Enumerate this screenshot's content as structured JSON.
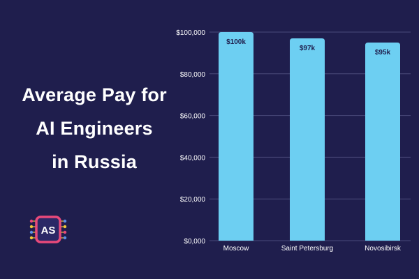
{
  "title": {
    "lines": [
      "Average Pay for",
      "AI Engineers",
      "in Russia"
    ]
  },
  "logo": {
    "text": "AS",
    "colors": {
      "border": "#e8497a",
      "fill": "#2a2866",
      "dots_pink": "#e8497a",
      "dots_yellow": "#f0c93a",
      "dots_blue": "#5b8ee6"
    }
  },
  "colors": {
    "background": "#1f1e4d",
    "bar": "#6dcff2",
    "bar_label": "#1f1e4d",
    "axis_text": "#ffffff",
    "grid": "#4a4a7a"
  },
  "chart_data": {
    "type": "bar",
    "categories": [
      "Moscow",
      "Saint Petersburg",
      "Novosibirsk"
    ],
    "values": [
      100000,
      97000,
      95000
    ],
    "data_labels": [
      "$100k",
      "$97k",
      "$95k"
    ],
    "title": "",
    "xlabel": "",
    "ylabel": "",
    "ylim": [
      0,
      100000
    ],
    "yticks": [
      0,
      20000,
      40000,
      60000,
      80000,
      100000
    ],
    "ytick_labels": [
      "$0,000",
      "$20,000",
      "$40,000",
      "$60,000",
      "$80,000",
      "$100,000"
    ],
    "grid": true,
    "legend": "none"
  }
}
